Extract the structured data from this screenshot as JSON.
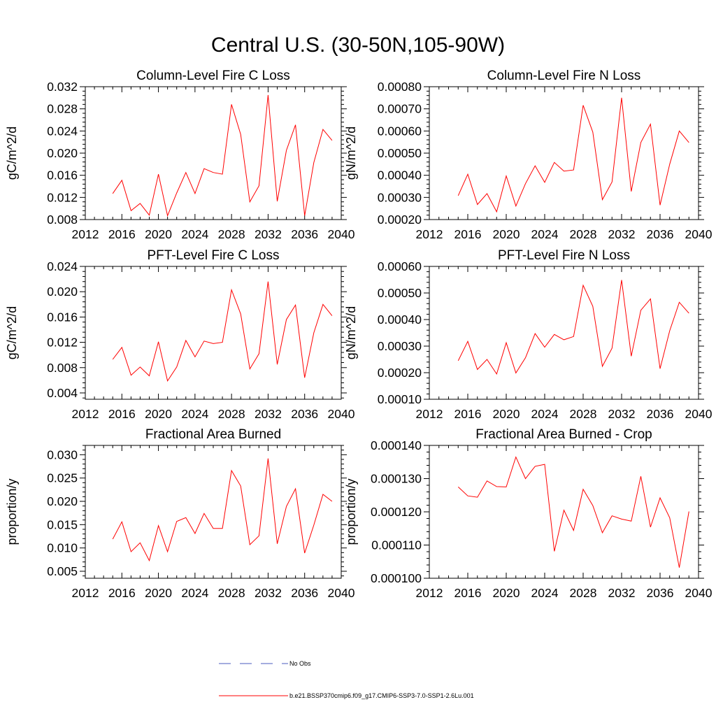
{
  "title": "Central U.S. (30-50N,105-90W)",
  "colors": {
    "model": "#ff0000",
    "obs": "#4a5bbf",
    "axis": "#000000"
  },
  "legend": {
    "items": [
      {
        "label": "No Obs",
        "style": "dashed",
        "color": "#4a5bbf"
      },
      {
        "label": "b.e21.BSSP370cmip6.f09_g17.CMIP6-SSP3-7.0-SSP1-2.6Lu.001",
        "style": "solid",
        "color": "#ff0000"
      }
    ]
  },
  "chart_data": [
    {
      "type": "line",
      "title": "Column-Level Fire C Loss",
      "ylabel": "gC/m^2/d",
      "xlim": [
        2012,
        2040
      ],
      "xticks": [
        "2012",
        "2016",
        "2020",
        "2024",
        "2028",
        "2032",
        "2036",
        "2040"
      ],
      "ylim": [
        0.008,
        0.032
      ],
      "yticks": [
        "0.008",
        "0.012",
        "0.016",
        "0.020",
        "0.024",
        "0.028",
        "0.032"
      ],
      "x": [
        2015,
        2016,
        2017,
        2018,
        2019,
        2020,
        2021,
        2022,
        2023,
        2024,
        2025,
        2026,
        2027,
        2028,
        2029,
        2030,
        2031,
        2032,
        2033,
        2034,
        2035,
        2036,
        2037,
        2038,
        2039
      ],
      "series": [
        {
          "values": [
            0.0127,
            0.0151,
            0.0096,
            0.0109,
            0.0088,
            0.0162,
            0.0087,
            0.0128,
            0.0165,
            0.0127,
            0.0172,
            0.0165,
            0.0162,
            0.0288,
            0.0234,
            0.0112,
            0.0141,
            0.0305,
            0.0113,
            0.0205,
            0.0251,
            0.0087,
            0.0183,
            0.0243,
            0.0223
          ]
        }
      ]
    },
    {
      "type": "line",
      "title": "Column-Level Fire N Loss",
      "ylabel": "gN/m^2/d",
      "xlim": [
        2012,
        2040
      ],
      "xticks": [
        "2012",
        "2016",
        "2020",
        "2024",
        "2028",
        "2032",
        "2036",
        "2040"
      ],
      "ylim": [
        0.0002,
        0.0008
      ],
      "yticks": [
        "0.00020",
        "0.00030",
        "0.00040",
        "0.00050",
        "0.00060",
        "0.00070",
        "0.00080"
      ],
      "x": [
        2015,
        2016,
        2017,
        2018,
        2019,
        2020,
        2021,
        2022,
        2023,
        2024,
        2025,
        2026,
        2027,
        2028,
        2029,
        2030,
        2031,
        2032,
        2033,
        2034,
        2035,
        2036,
        2037,
        2038,
        2039
      ],
      "series": [
        {
          "values": [
            0.000308,
            0.000405,
            0.000268,
            0.000317,
            0.000235,
            0.000397,
            0.000261,
            0.000362,
            0.000443,
            0.000368,
            0.000458,
            0.000419,
            0.000424,
            0.000716,
            0.000595,
            0.00029,
            0.00037,
            0.00075,
            0.000327,
            0.000548,
            0.000631,
            0.000265,
            0.00045,
            0.0006,
            0.000548
          ]
        }
      ]
    },
    {
      "type": "line",
      "title": "PFT-Level Fire C Loss",
      "ylabel": "gC/m^2/d",
      "xlim": [
        2012,
        2040
      ],
      "xticks": [
        "2012",
        "2016",
        "2020",
        "2024",
        "2028",
        "2032",
        "2036",
        "2040"
      ],
      "ylim": [
        0.003,
        0.024
      ],
      "yticks": [
        "0.004",
        "0.008",
        "0.012",
        "0.016",
        "0.020",
        "0.024"
      ],
      "x": [
        2015,
        2016,
        2017,
        2018,
        2019,
        2020,
        2021,
        2022,
        2023,
        2024,
        2025,
        2026,
        2027,
        2028,
        2029,
        2030,
        2031,
        2032,
        2033,
        2034,
        2035,
        2036,
        2037,
        2038,
        2039
      ],
      "series": [
        {
          "values": [
            0.0093,
            0.0112,
            0.0068,
            0.0081,
            0.0067,
            0.0121,
            0.0059,
            0.0081,
            0.0123,
            0.0097,
            0.0122,
            0.0118,
            0.012,
            0.0203,
            0.0165,
            0.0078,
            0.0102,
            0.0216,
            0.0085,
            0.0156,
            0.0179,
            0.0064,
            0.0135,
            0.018,
            0.0162
          ]
        }
      ]
    },
    {
      "type": "line",
      "title": "PFT-Level Fire N Loss",
      "ylabel": "gN/m^2/d",
      "xlim": [
        2012,
        2040
      ],
      "xticks": [
        "2012",
        "2016",
        "2020",
        "2024",
        "2028",
        "2032",
        "2036",
        "2040"
      ],
      "ylim": [
        0.0001,
        0.0006
      ],
      "yticks": [
        "0.00010",
        "0.00020",
        "0.00030",
        "0.00040",
        "0.00050",
        "0.00060"
      ],
      "x": [
        2015,
        2016,
        2017,
        2018,
        2019,
        2020,
        2021,
        2022,
        2023,
        2024,
        2025,
        2026,
        2027,
        2028,
        2029,
        2030,
        2031,
        2032,
        2033,
        2034,
        2035,
        2036,
        2037,
        2038,
        2039
      ],
      "series": [
        {
          "values": [
            0.000245,
            0.000318,
            0.000212,
            0.00025,
            0.000195,
            0.000313,
            0.000199,
            0.000256,
            0.000347,
            0.000296,
            0.000344,
            0.000324,
            0.000336,
            0.000529,
            0.00045,
            0.000224,
            0.000292,
            0.000549,
            0.000262,
            0.000435,
            0.000478,
            0.000215,
            0.000358,
            0.000465,
            0.000424
          ]
        }
      ]
    },
    {
      "type": "line",
      "title": "Fractional Area Burned",
      "ylabel": "proportion/y",
      "xlim": [
        2012,
        2040
      ],
      "xticks": [
        "2012",
        "2016",
        "2020",
        "2024",
        "2028",
        "2032",
        "2036",
        "2040"
      ],
      "ylim": [
        0.0035,
        0.032
      ],
      "yticks": [
        "0.005",
        "0.010",
        "0.015",
        "0.020",
        "0.025",
        "0.030"
      ],
      "x": [
        2015,
        2016,
        2017,
        2018,
        2019,
        2020,
        2021,
        2022,
        2023,
        2024,
        2025,
        2026,
        2027,
        2028,
        2029,
        2030,
        2031,
        2032,
        2033,
        2034,
        2035,
        2036,
        2037,
        2038,
        2039
      ],
      "series": [
        {
          "values": [
            0.0119,
            0.0156,
            0.0092,
            0.0111,
            0.0073,
            0.0148,
            0.0092,
            0.0157,
            0.0165,
            0.0131,
            0.0174,
            0.0142,
            0.0142,
            0.0266,
            0.0233,
            0.0107,
            0.0126,
            0.0292,
            0.0109,
            0.0189,
            0.0227,
            0.0089,
            0.0149,
            0.0215,
            0.02
          ]
        }
      ]
    },
    {
      "type": "line",
      "title": "Fractional Area Burned - Crop",
      "ylabel": "proportion/y",
      "xlim": [
        2012,
        2040
      ],
      "xticks": [
        "2012",
        "2016",
        "2020",
        "2024",
        "2028",
        "2032",
        "2036",
        "2040"
      ],
      "ylim": [
        0.0001,
        0.00014
      ],
      "yticks": [
        "0.000100",
        "0.000110",
        "0.000120",
        "0.000130",
        "0.000140"
      ],
      "x": [
        2015,
        2016,
        2017,
        2018,
        2019,
        2020,
        2021,
        2022,
        2023,
        2024,
        2025,
        2026,
        2027,
        2028,
        2029,
        2030,
        2031,
        2032,
        2033,
        2034,
        2035,
        2036,
        2037,
        2038,
        2039
      ],
      "series": [
        {
          "values": [
            0.0001275,
            0.0001248,
            0.0001244,
            0.0001293,
            0.0001276,
            0.0001275,
            0.0001365,
            0.00013,
            0.0001337,
            0.0001343,
            0.0001081,
            0.0001205,
            0.0001144,
            0.0001268,
            0.0001219,
            0.0001137,
            0.0001188,
            0.0001178,
            0.0001172,
            0.0001307,
            0.0001154,
            0.0001242,
            0.0001182,
            0.0001032,
            0.0001201
          ]
        }
      ]
    }
  ]
}
